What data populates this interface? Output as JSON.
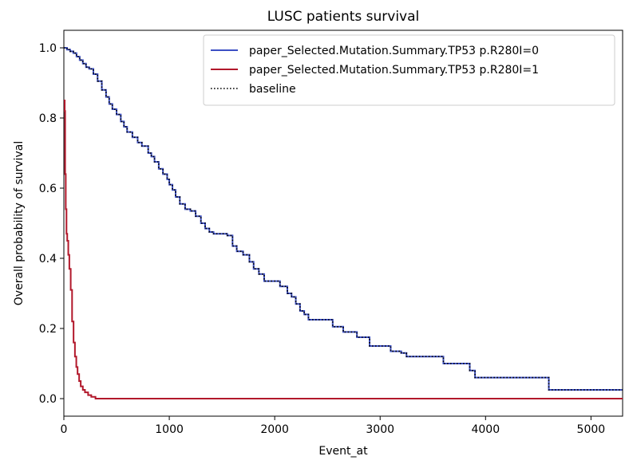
{
  "chart_data": {
    "type": "line",
    "title": "LUSC patients survival",
    "xlabel": "Event_at",
    "ylabel": "Overall probability of survival",
    "xlim": [
      0,
      5300
    ],
    "ylim": [
      -0.05,
      1.05
    ],
    "xticks": [
      0,
      1000,
      2000,
      3000,
      4000,
      5000
    ],
    "yticks": [
      0.0,
      0.2,
      0.4,
      0.6,
      0.8,
      1.0
    ],
    "xtick_labels": [
      "0",
      "1000",
      "2000",
      "3000",
      "4000",
      "5000"
    ],
    "ytick_labels": [
      "0.0",
      "0.2",
      "0.4",
      "0.6",
      "0.8",
      "1.0"
    ],
    "grid": false,
    "legend_position": "top-right",
    "step": true,
    "series": [
      {
        "name": "paper_Selected.Mutation.Summary.TP53 p.R280I=0",
        "color": "#3c4fc4",
        "style": "solid",
        "x": [
          0,
          30,
          60,
          90,
          120,
          150,
          180,
          210,
          240,
          280,
          320,
          360,
          400,
          430,
          460,
          500,
          540,
          570,
          600,
          650,
          700,
          740,
          800,
          830,
          860,
          900,
          940,
          980,
          1000,
          1030,
          1060,
          1100,
          1150,
          1200,
          1250,
          1300,
          1340,
          1380,
          1420,
          1480,
          1550,
          1600,
          1640,
          1700,
          1760,
          1800,
          1850,
          1900,
          1960,
          2050,
          2120,
          2160,
          2200,
          2240,
          2280,
          2320,
          2380,
          2450,
          2550,
          2650,
          2780,
          2900,
          3100,
          3200,
          3250,
          3400,
          3600,
          3850,
          3900,
          4600,
          5300
        ],
        "y": [
          1.0,
          0.995,
          0.99,
          0.985,
          0.975,
          0.965,
          0.955,
          0.945,
          0.94,
          0.925,
          0.905,
          0.88,
          0.86,
          0.84,
          0.825,
          0.81,
          0.79,
          0.775,
          0.76,
          0.745,
          0.73,
          0.72,
          0.7,
          0.69,
          0.675,
          0.655,
          0.64,
          0.625,
          0.61,
          0.595,
          0.575,
          0.555,
          0.54,
          0.535,
          0.52,
          0.5,
          0.485,
          0.475,
          0.47,
          0.47,
          0.465,
          0.435,
          0.42,
          0.41,
          0.39,
          0.37,
          0.355,
          0.335,
          0.335,
          0.32,
          0.3,
          0.29,
          0.27,
          0.25,
          0.24,
          0.225,
          0.225,
          0.225,
          0.205,
          0.19,
          0.175,
          0.15,
          0.135,
          0.13,
          0.12,
          0.12,
          0.1,
          0.08,
          0.06,
          0.025,
          0.025
        ]
      },
      {
        "name": "paper_Selected.Mutation.Summary.TP53 p.R280I=1",
        "color": "#b2182b",
        "style": "solid",
        "x": [
          0,
          8,
          12,
          18,
          25,
          32,
          42,
          52,
          65,
          78,
          92,
          105,
          118,
          130,
          145,
          160,
          180,
          200,
          230,
          260,
          300,
          5300
        ],
        "y": [
          0.85,
          0.82,
          0.64,
          0.54,
          0.47,
          0.45,
          0.41,
          0.37,
          0.31,
          0.22,
          0.16,
          0.12,
          0.09,
          0.07,
          0.05,
          0.035,
          0.025,
          0.018,
          0.01,
          0.005,
          0.0,
          0.0
        ]
      },
      {
        "name": "baseline",
        "color": "#000000",
        "style": "dotted",
        "x": [
          0,
          30,
          60,
          90,
          120,
          150,
          180,
          210,
          240,
          280,
          320,
          360,
          400,
          430,
          460,
          500,
          540,
          570,
          600,
          650,
          700,
          740,
          800,
          830,
          860,
          900,
          940,
          980,
          1000,
          1030,
          1060,
          1100,
          1150,
          1200,
          1250,
          1300,
          1340,
          1380,
          1420,
          1480,
          1550,
          1600,
          1640,
          1700,
          1760,
          1800,
          1850,
          1900,
          1960,
          2050,
          2120,
          2160,
          2200,
          2240,
          2280,
          2320,
          2380,
          2450,
          2550,
          2650,
          2780,
          2900,
          3100,
          3200,
          3250,
          3400,
          3600,
          3850,
          3900,
          4600,
          5300
        ],
        "y": [
          1.0,
          0.995,
          0.99,
          0.985,
          0.975,
          0.965,
          0.955,
          0.945,
          0.94,
          0.925,
          0.905,
          0.88,
          0.86,
          0.84,
          0.825,
          0.81,
          0.79,
          0.775,
          0.76,
          0.745,
          0.73,
          0.72,
          0.7,
          0.69,
          0.675,
          0.655,
          0.64,
          0.625,
          0.61,
          0.595,
          0.575,
          0.555,
          0.54,
          0.535,
          0.52,
          0.5,
          0.485,
          0.475,
          0.47,
          0.47,
          0.465,
          0.435,
          0.42,
          0.41,
          0.39,
          0.37,
          0.355,
          0.335,
          0.335,
          0.32,
          0.3,
          0.29,
          0.27,
          0.25,
          0.24,
          0.225,
          0.225,
          0.225,
          0.205,
          0.19,
          0.175,
          0.15,
          0.135,
          0.13,
          0.12,
          0.12,
          0.1,
          0.08,
          0.06,
          0.025,
          0.025
        ]
      }
    ]
  }
}
